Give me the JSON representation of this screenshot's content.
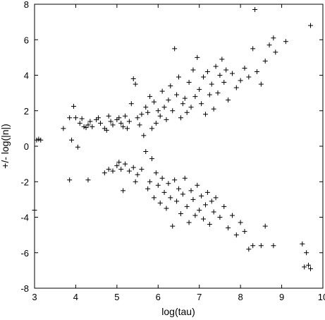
{
  "chart_data": {
    "type": "scatter",
    "xlabel": "log(tau)",
    "ylabel": "+/- log(|n|)",
    "xlim": [
      3,
      10
    ],
    "ylim": [
      -8,
      8
    ],
    "xticks": [
      3,
      4,
      5,
      6,
      7,
      8,
      9,
      10
    ],
    "yticks": [
      -8,
      -6,
      -4,
      -2,
      0,
      2,
      4,
      6,
      8
    ],
    "grid": false,
    "marker": "+",
    "marker_color": "#000000",
    "series": [
      {
        "points": [
          [
            3.0,
            -3.6
          ],
          [
            3.05,
            0.35
          ],
          [
            3.1,
            0.4
          ],
          [
            3.15,
            0.35
          ],
          [
            3.7,
            1.0
          ],
          [
            3.85,
            1.6
          ],
          [
            3.9,
            0.35
          ],
          [
            3.95,
            2.25
          ],
          [
            4.0,
            1.6
          ],
          [
            4.05,
            -0.05
          ],
          [
            4.1,
            1.3
          ],
          [
            4.15,
            1.55
          ],
          [
            4.2,
            1.1
          ],
          [
            4.25,
            1.05
          ],
          [
            4.3,
            1.2
          ],
          [
            4.35,
            1.4
          ],
          [
            4.4,
            1.1
          ],
          [
            4.5,
            1.5
          ],
          [
            4.55,
            1.6
          ],
          [
            4.6,
            1.3
          ],
          [
            4.7,
            1.0
          ],
          [
            4.75,
            0.9
          ],
          [
            4.8,
            1.7
          ],
          [
            4.85,
            1.4
          ],
          [
            4.9,
            1.2
          ],
          [
            5.0,
            1.5
          ],
          [
            5.05,
            1.6
          ],
          [
            5.1,
            1.3
          ],
          [
            5.15,
            1.1
          ],
          [
            5.2,
            1.7
          ],
          [
            5.25,
            1.0
          ],
          [
            5.3,
            1.4
          ],
          [
            5.35,
            2.4
          ],
          [
            5.4,
            3.8
          ],
          [
            5.45,
            3.5
          ],
          [
            5.5,
            1.6
          ],
          [
            5.55,
            1.2
          ],
          [
            5.6,
            1.8
          ],
          [
            5.65,
            0.6
          ],
          [
            5.7,
            2.2
          ],
          [
            5.75,
            1.9
          ],
          [
            5.8,
            2.8
          ],
          [
            5.85,
            1.0
          ],
          [
            5.9,
            2.5
          ],
          [
            5.95,
            1.3
          ],
          [
            6.0,
            2.0
          ],
          [
            6.05,
            1.7
          ],
          [
            6.1,
            3.1
          ],
          [
            6.15,
            2.2
          ],
          [
            6.2,
            1.5
          ],
          [
            6.25,
            2.6
          ],
          [
            6.3,
            3.4
          ],
          [
            6.35,
            2.0
          ],
          [
            6.4,
            5.5
          ],
          [
            6.45,
            2.9
          ],
          [
            6.5,
            3.9
          ],
          [
            6.55,
            1.6
          ],
          [
            6.6,
            2.4
          ],
          [
            6.65,
            2.7
          ],
          [
            6.7,
            1.9
          ],
          [
            6.75,
            3.6
          ],
          [
            6.8,
            2.2
          ],
          [
            6.85,
            4.3
          ],
          [
            6.9,
            2.8
          ],
          [
            6.95,
            5.0
          ],
          [
            7.0,
            3.2
          ],
          [
            7.05,
            2.4
          ],
          [
            7.1,
            3.9
          ],
          [
            7.15,
            1.8
          ],
          [
            7.2,
            4.2
          ],
          [
            7.25,
            2.9
          ],
          [
            7.3,
            3.5
          ],
          [
            7.35,
            2.1
          ],
          [
            7.4,
            4.5
          ],
          [
            7.45,
            3.0
          ],
          [
            7.5,
            4.0
          ],
          [
            7.55,
            4.9
          ],
          [
            7.6,
            3.6
          ],
          [
            7.65,
            4.3
          ],
          [
            7.7,
            2.6
          ],
          [
            7.8,
            4.1
          ],
          [
            7.9,
            3.3
          ],
          [
            8.0,
            3.7
          ],
          [
            8.1,
            4.4
          ],
          [
            8.2,
            3.9
          ],
          [
            8.3,
            5.5
          ],
          [
            8.35,
            7.7
          ],
          [
            8.4,
            4.2
          ],
          [
            8.5,
            3.5
          ],
          [
            8.6,
            4.8
          ],
          [
            8.7,
            5.7
          ],
          [
            8.8,
            6.1
          ],
          [
            8.85,
            5.3
          ],
          [
            9.1,
            5.9
          ],
          [
            9.7,
            6.8
          ],
          [
            3.85,
            -1.9
          ],
          [
            4.3,
            -1.9
          ],
          [
            4.7,
            -1.5
          ],
          [
            4.8,
            -1.3
          ],
          [
            4.9,
            -1.4
          ],
          [
            5.0,
            -1.1
          ],
          [
            5.05,
            -0.9
          ],
          [
            5.1,
            -1.3
          ],
          [
            5.15,
            -2.5
          ],
          [
            5.2,
            -1.0
          ],
          [
            5.3,
            -1.4
          ],
          [
            5.4,
            -1.2
          ],
          [
            5.45,
            -2.0
          ],
          [
            5.5,
            -1.6
          ],
          [
            5.6,
            -1.3
          ],
          [
            5.7,
            -0.3
          ],
          [
            5.75,
            -2.4
          ],
          [
            5.8,
            -2.0
          ],
          [
            5.85,
            -0.7
          ],
          [
            5.9,
            -2.9
          ],
          [
            5.95,
            -1.5
          ],
          [
            6.0,
            -2.2
          ],
          [
            6.05,
            -3.2
          ],
          [
            6.1,
            -1.8
          ],
          [
            6.15,
            -2.6
          ],
          [
            6.2,
            -3.5
          ],
          [
            6.25,
            -2.1
          ],
          [
            6.3,
            -2.9
          ],
          [
            6.35,
            -4.5
          ],
          [
            6.4,
            -1.9
          ],
          [
            6.45,
            -3.1
          ],
          [
            6.5,
            -2.4
          ],
          [
            6.55,
            -3.8
          ],
          [
            6.6,
            -2.7
          ],
          [
            6.65,
            -1.8
          ],
          [
            6.7,
            -3.4
          ],
          [
            6.75,
            -4.3
          ],
          [
            6.8,
            -2.5
          ],
          [
            6.85,
            -3.0
          ],
          [
            6.9,
            -3.9
          ],
          [
            6.95,
            -2.2
          ],
          [
            7.0,
            -3.6
          ],
          [
            7.05,
            -2.8
          ],
          [
            7.1,
            -4.1
          ],
          [
            7.15,
            -3.3
          ],
          [
            7.2,
            -2.6
          ],
          [
            7.25,
            -4.4
          ],
          [
            7.3,
            -3.1
          ],
          [
            7.35,
            -3.7
          ],
          [
            7.4,
            -2.9
          ],
          [
            7.5,
            -4.0
          ],
          [
            7.6,
            -3.4
          ],
          [
            7.7,
            -4.6
          ],
          [
            7.8,
            -3.9
          ],
          [
            7.9,
            -5.0
          ],
          [
            8.0,
            -4.3
          ],
          [
            8.1,
            -4.8
          ],
          [
            8.2,
            -5.8
          ],
          [
            8.3,
            -5.6
          ],
          [
            8.5,
            -5.6
          ],
          [
            8.6,
            -4.5
          ],
          [
            8.8,
            -5.6
          ],
          [
            9.5,
            -5.5
          ],
          [
            9.6,
            -6.0
          ],
          [
            9.65,
            -6.7
          ],
          [
            9.7,
            -6.9
          ],
          [
            9.55,
            -6.8
          ]
        ]
      }
    ]
  }
}
